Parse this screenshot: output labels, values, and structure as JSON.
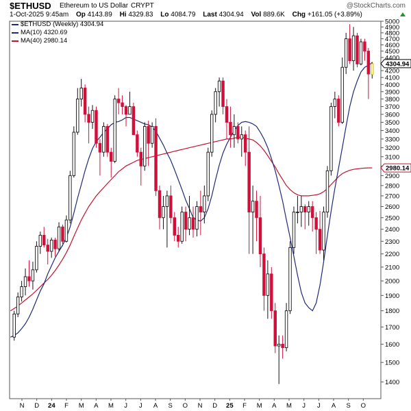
{
  "header": {
    "symbol": "$ETHUSD",
    "description": "Ethereum to US Dollar",
    "exchange": "CRYPT",
    "brand": "@StockCharts.com",
    "date": "1-Oct-2025 9:45am",
    "op_label": "Op",
    "op": "4143.89",
    "hi_label": "Hi",
    "hi": "4329.83",
    "lo_label": "Lo",
    "lo": "4084.79",
    "last_label": "Last",
    "last": "4304.94",
    "vol_label": "Vol",
    "vol": "889.6K",
    "chg_label": "Chg",
    "chg": "+161.05 (+3.89%)"
  },
  "legend": [
    {
      "text": "$ETHUSD (Weekly) 4304.94",
      "color": "#1e2a78"
    },
    {
      "text": "MA(10) 4320.69",
      "color": "#1e2a78"
    },
    {
      "text": "MA(40) 2980.14",
      "color": "#c8102e"
    }
  ],
  "chart_data": {
    "type": "candlestick",
    "title": "$ETHUSD",
    "subtitle": "Ethereum to US Dollar",
    "interval": "Weekly",
    "y_ticks": [
      1400,
      1500,
      1600,
      1700,
      1800,
      1900,
      2000,
      2100,
      2200,
      2300,
      2400,
      2500,
      2600,
      2700,
      2800,
      2900,
      3000,
      3100,
      3200,
      3300,
      3400,
      3500,
      3600,
      3700,
      3800,
      3900,
      4000,
      4100,
      4200,
      4300,
      4400,
      4500,
      4600,
      4700,
      4800,
      4900,
      5000
    ],
    "ylim": [
      1320,
      5000
    ],
    "y_scale": "log",
    "x_month_labels": [
      "N",
      "D",
      "24",
      "F",
      "M",
      "A",
      "M",
      "J",
      "J",
      "A",
      "S",
      "O",
      "N",
      "D",
      "25",
      "F",
      "M",
      "A",
      "M",
      "J",
      "J",
      "A",
      "S",
      "O"
    ],
    "bull_color": "#111111",
    "bear_color": "#d0103a",
    "last_price_label": "4304.94",
    "ma40_label": "2980.14",
    "candles": [
      {
        "o": 1640,
        "h": 1800,
        "l": 1620,
        "c": 1780
      },
      {
        "o": 1780,
        "h": 1920,
        "l": 1760,
        "c": 1890
      },
      {
        "o": 1890,
        "h": 2000,
        "l": 1860,
        "c": 1960
      },
      {
        "o": 1960,
        "h": 2090,
        "l": 1900,
        "c": 2030
      },
      {
        "o": 2030,
        "h": 2150,
        "l": 1960,
        "c": 2000
      },
      {
        "o": 2000,
        "h": 2140,
        "l": 1940,
        "c": 2080
      },
      {
        "o": 2080,
        "h": 2300,
        "l": 2060,
        "c": 2260
      },
      {
        "o": 2260,
        "h": 2380,
        "l": 2200,
        "c": 2350
      },
      {
        "o": 2350,
        "h": 2420,
        "l": 2250,
        "c": 2270
      },
      {
        "o": 2270,
        "h": 2320,
        "l": 2120,
        "c": 2220
      },
      {
        "o": 2220,
        "h": 2330,
        "l": 2170,
        "c": 2310
      },
      {
        "o": 2310,
        "h": 2330,
        "l": 2180,
        "c": 2240
      },
      {
        "o": 2240,
        "h": 2460,
        "l": 2220,
        "c": 2420
      },
      {
        "o": 2420,
        "h": 2440,
        "l": 2260,
        "c": 2300
      },
      {
        "o": 2300,
        "h": 2520,
        "l": 2290,
        "c": 2480
      },
      {
        "o": 2480,
        "h": 2950,
        "l": 2450,
        "c": 2900
      },
      {
        "o": 2900,
        "h": 3450,
        "l": 2880,
        "c": 3380
      },
      {
        "o": 3380,
        "h": 3950,
        "l": 3350,
        "c": 3800
      },
      {
        "o": 3800,
        "h": 4080,
        "l": 3700,
        "c": 3950
      },
      {
        "o": 3950,
        "h": 4000,
        "l": 3500,
        "c": 3600
      },
      {
        "o": 3600,
        "h": 3700,
        "l": 3250,
        "c": 3500
      },
      {
        "o": 3500,
        "h": 3720,
        "l": 3420,
        "c": 3650
      },
      {
        "o": 3650,
        "h": 3700,
        "l": 3200,
        "c": 3250
      },
      {
        "o": 3250,
        "h": 3300,
        "l": 2900,
        "c": 3150
      },
      {
        "o": 3150,
        "h": 3500,
        "l": 3100,
        "c": 3450
      },
      {
        "o": 3450,
        "h": 3480,
        "l": 3100,
        "c": 3150
      },
      {
        "o": 3150,
        "h": 3200,
        "l": 2880,
        "c": 3050
      },
      {
        "o": 3050,
        "h": 3850,
        "l": 3030,
        "c": 3800
      },
      {
        "o": 3800,
        "h": 3950,
        "l": 3600,
        "c": 3750
      },
      {
        "o": 3750,
        "h": 3850,
        "l": 3600,
        "c": 3700
      },
      {
        "o": 3700,
        "h": 3720,
        "l": 3450,
        "c": 3600
      },
      {
        "o": 3600,
        "h": 3900,
        "l": 3600,
        "c": 3700
      },
      {
        "o": 3700,
        "h": 3750,
        "l": 3350,
        "c": 3350
      },
      {
        "o": 3350,
        "h": 3400,
        "l": 3100,
        "c": 3150
      },
      {
        "o": 3150,
        "h": 3200,
        "l": 2800,
        "c": 3000
      },
      {
        "o": 3000,
        "h": 3500,
        "l": 2950,
        "c": 3450
      },
      {
        "o": 3450,
        "h": 3520,
        "l": 3000,
        "c": 3250
      },
      {
        "o": 3250,
        "h": 3500,
        "l": 3200,
        "c": 3450
      },
      {
        "o": 3450,
        "h": 3550,
        "l": 2700,
        "c": 2750
      },
      {
        "o": 2750,
        "h": 2800,
        "l": 2400,
        "c": 2500
      },
      {
        "o": 2500,
        "h": 2700,
        "l": 2400,
        "c": 2600
      },
      {
        "o": 2600,
        "h": 2750,
        "l": 2250,
        "c": 2700
      },
      {
        "o": 2700,
        "h": 2800,
        "l": 2450,
        "c": 2500
      },
      {
        "o": 2500,
        "h": 2550,
        "l": 2300,
        "c": 2350
      },
      {
        "o": 2350,
        "h": 2420,
        "l": 2250,
        "c": 2300
      },
      {
        "o": 2300,
        "h": 2600,
        "l": 2280,
        "c": 2550
      },
      {
        "o": 2550,
        "h": 2600,
        "l": 2300,
        "c": 2400
      },
      {
        "o": 2400,
        "h": 2700,
        "l": 2350,
        "c": 2500
      },
      {
        "o": 2500,
        "h": 2600,
        "l": 2330,
        "c": 2400
      },
      {
        "o": 2400,
        "h": 2650,
        "l": 2340,
        "c": 2600
      },
      {
        "o": 2600,
        "h": 2750,
        "l": 2350,
        "c": 2550
      },
      {
        "o": 2550,
        "h": 2800,
        "l": 2450,
        "c": 2700
      },
      {
        "o": 2700,
        "h": 3200,
        "l": 2650,
        "c": 3150
      },
      {
        "o": 3150,
        "h": 3650,
        "l": 3100,
        "c": 3600
      },
      {
        "o": 3600,
        "h": 3950,
        "l": 3500,
        "c": 3900
      },
      {
        "o": 3900,
        "h": 4100,
        "l": 3700,
        "c": 4050
      },
      {
        "o": 4050,
        "h": 4100,
        "l": 3600,
        "c": 3700
      },
      {
        "o": 3700,
        "h": 3800,
        "l": 3300,
        "c": 3500
      },
      {
        "o": 3500,
        "h": 3700,
        "l": 3200,
        "c": 3350
      },
      {
        "o": 3350,
        "h": 3600,
        "l": 3200,
        "c": 3450
      },
      {
        "o": 3450,
        "h": 3500,
        "l": 3250,
        "c": 3300
      },
      {
        "o": 3300,
        "h": 3450,
        "l": 3100,
        "c": 3350
      },
      {
        "o": 3350,
        "h": 3400,
        "l": 3000,
        "c": 3150
      },
      {
        "o": 3150,
        "h": 3450,
        "l": 2200,
        "c": 2550
      },
      {
        "o": 2550,
        "h": 2800,
        "l": 2200,
        "c": 2650
      },
      {
        "o": 2650,
        "h": 2750,
        "l": 2300,
        "c": 2500
      },
      {
        "o": 2500,
        "h": 2700,
        "l": 2100,
        "c": 2200
      },
      {
        "o": 2200,
        "h": 2250,
        "l": 1800,
        "c": 1900
      },
      {
        "o": 1900,
        "h": 2150,
        "l": 1750,
        "c": 2050
      },
      {
        "o": 2050,
        "h": 2100,
        "l": 1750,
        "c": 1800
      },
      {
        "o": 1800,
        "h": 1850,
        "l": 1550,
        "c": 1590
      },
      {
        "o": 1590,
        "h": 1650,
        "l": 1390,
        "c": 1600
      },
      {
        "o": 1600,
        "h": 1650,
        "l": 1520,
        "c": 1580
      },
      {
        "o": 1580,
        "h": 1850,
        "l": 1560,
        "c": 1800
      },
      {
        "o": 1800,
        "h": 2300,
        "l": 1780,
        "c": 2250
      },
      {
        "o": 2250,
        "h": 2600,
        "l": 2200,
        "c": 2550
      },
      {
        "o": 2550,
        "h": 2700,
        "l": 2450,
        "c": 2550
      },
      {
        "o": 2550,
        "h": 2700,
        "l": 2420,
        "c": 2600
      },
      {
        "o": 2600,
        "h": 2620,
        "l": 2400,
        "c": 2550
      },
      {
        "o": 2550,
        "h": 2650,
        "l": 2430,
        "c": 2600
      },
      {
        "o": 2600,
        "h": 2650,
        "l": 2380,
        "c": 2500
      },
      {
        "o": 2500,
        "h": 2550,
        "l": 2200,
        "c": 2400
      },
      {
        "o": 2400,
        "h": 2560,
        "l": 2200,
        "c": 2230
      },
      {
        "o": 2230,
        "h": 2600,
        "l": 2150,
        "c": 2550
      },
      {
        "o": 2550,
        "h": 3000,
        "l": 2500,
        "c": 2950
      },
      {
        "o": 2950,
        "h": 3750,
        "l": 2900,
        "c": 3700
      },
      {
        "o": 3700,
        "h": 3900,
        "l": 3550,
        "c": 3800
      },
      {
        "o": 3800,
        "h": 3850,
        "l": 3450,
        "c": 3500
      },
      {
        "o": 3500,
        "h": 4400,
        "l": 3480,
        "c": 4250
      },
      {
        "o": 4250,
        "h": 4800,
        "l": 4150,
        "c": 4700
      },
      {
        "o": 4700,
        "h": 4950,
        "l": 4300,
        "c": 4350
      },
      {
        "o": 4350,
        "h": 4900,
        "l": 4200,
        "c": 4750
      },
      {
        "o": 4750,
        "h": 4800,
        "l": 4250,
        "c": 4300
      },
      {
        "o": 4300,
        "h": 4700,
        "l": 4280,
        "c": 4650
      },
      {
        "o": 4650,
        "h": 4700,
        "l": 4350,
        "c": 4500
      },
      {
        "o": 4500,
        "h": 4550,
        "l": 3800,
        "c": 4150
      },
      {
        "o": 4143.89,
        "h": 4329.83,
        "l": 4084.79,
        "c": 4304.94
      }
    ],
    "ma10": [
      1640,
      1650,
      1665,
      1690,
      1720,
      1760,
      1810,
      1870,
      1930,
      1980,
      2050,
      2110,
      2170,
      2220,
      2270,
      2330,
      2420,
      2540,
      2680,
      2810,
      2950,
      3080,
      3190,
      3270,
      3320,
      3380,
      3420,
      3470,
      3500,
      3510,
      3530,
      3560,
      3560,
      3540,
      3520,
      3500,
      3480,
      3470,
      3440,
      3390,
      3310,
      3230,
      3140,
      3060,
      2960,
      2860,
      2760,
      2660,
      2580,
      2500,
      2480,
      2470,
      2500,
      2580,
      2700,
      2860,
      3010,
      3140,
      3240,
      3320,
      3400,
      3460,
      3500,
      3510,
      3500,
      3480,
      3450,
      3380,
      3300,
      3200,
      3080,
      2950,
      2800,
      2650,
      2480,
      2330,
      2180,
      2040,
      1920,
      1850,
      1820,
      1800,
      1850,
      1970,
      2140,
      2350,
      2560,
      2770,
      2980,
      3200,
      3450,
      3700,
      3900,
      4050,
      4180,
      4250,
      4280,
      4320.69
    ],
    "ma40": [
      1800,
      1815,
      1830,
      1850,
      1870,
      1890,
      1910,
      1935,
      1960,
      1985,
      2010,
      2040,
      2075,
      2115,
      2160,
      2210,
      2270,
      2340,
      2410,
      2480,
      2540,
      2600,
      2650,
      2700,
      2740,
      2780,
      2820,
      2860,
      2900,
      2940,
      2970,
      3000,
      3020,
      3040,
      3060,
      3070,
      3080,
      3090,
      3100,
      3110,
      3120,
      3130,
      3140,
      3150,
      3160,
      3170,
      3180,
      3190,
      3200,
      3210,
      3220,
      3230,
      3240,
      3250,
      3260,
      3270,
      3280,
      3290,
      3300,
      3300,
      3310,
      3320,
      3320,
      3310,
      3300,
      3290,
      3260,
      3220,
      3170,
      3110,
      3050,
      2990,
      2920,
      2860,
      2800,
      2760,
      2730,
      2710,
      2700,
      2700,
      2700,
      2705,
      2710,
      2720,
      2740,
      2770,
      2810,
      2850,
      2890,
      2920,
      2940,
      2955,
      2965,
      2970,
      2975,
      2978,
      2980,
      2980.14
    ]
  }
}
